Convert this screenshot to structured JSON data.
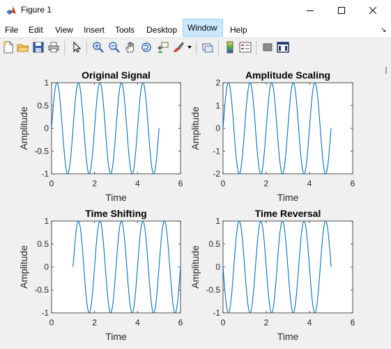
{
  "window": {
    "title": "Figure 1"
  },
  "menu": [
    "File",
    "Edit",
    "View",
    "Insert",
    "Tools",
    "Desktop",
    "Window",
    "Help"
  ],
  "toolbar": [
    "new-figure",
    "open-file",
    "save",
    "print",
    "edit-plot",
    "zoom-in",
    "zoom-out",
    "pan",
    "rotate-3d",
    "data-cursor",
    "brush",
    "link-plot",
    "colorbar",
    "legend",
    "hide-plot-tools",
    "show-plot-tools"
  ],
  "colors": {
    "line": "#0072bd",
    "axes_bg": "#ffffff",
    "figure_bg": "#f0f0f0"
  },
  "chart_data": [
    {
      "type": "line",
      "title": "Original Signal",
      "xlabel": "Time",
      "ylabel": "Amplitude",
      "xlim": [
        0,
        6
      ],
      "ylim": [
        -1,
        1
      ],
      "xticks": [
        "0",
        "2",
        "4",
        "6"
      ],
      "yticks": [
        "-1",
        "-0.5",
        "0",
        "0.5",
        "1"
      ],
      "series": [
        {
          "function": "sin(2*pi*t)",
          "t_range": [
            0,
            5
          ]
        }
      ]
    },
    {
      "type": "line",
      "title": "Amplitude Scaling",
      "xlabel": "Time",
      "ylabel": "Amplitude",
      "xlim": [
        0,
        6
      ],
      "ylim": [
        -2,
        2
      ],
      "xticks": [
        "0",
        "2",
        "4",
        "6"
      ],
      "yticks": [
        "-2",
        "-1",
        "0",
        "1",
        "2"
      ],
      "series": [
        {
          "function": "2*sin(2*pi*t)",
          "t_range": [
            0,
            5
          ]
        }
      ]
    },
    {
      "type": "line",
      "title": "Time Shifting",
      "xlabel": "Time",
      "ylabel": "Amplitude",
      "xlim": [
        0,
        6
      ],
      "ylim": [
        -1,
        1
      ],
      "xticks": [
        "0",
        "2",
        "4",
        "6"
      ],
      "yticks": [
        "-1",
        "-0.5",
        "0",
        "0.5",
        "1"
      ],
      "series": [
        {
          "function": "sin(2*pi*(t-1))",
          "t_range": [
            1,
            6
          ]
        }
      ]
    },
    {
      "type": "line",
      "title": "Time Reversal",
      "xlabel": "Time",
      "ylabel": "Amplitude",
      "xlim": [
        0,
        6
      ],
      "ylim": [
        -1,
        1
      ],
      "xticks": [
        "0",
        "2",
        "4",
        "6"
      ],
      "yticks": [
        "-1",
        "-0.5",
        "0",
        "0.5",
        "1"
      ],
      "series": [
        {
          "function": "sin(-2*pi*t)",
          "t_range": [
            0,
            5
          ]
        }
      ]
    }
  ]
}
